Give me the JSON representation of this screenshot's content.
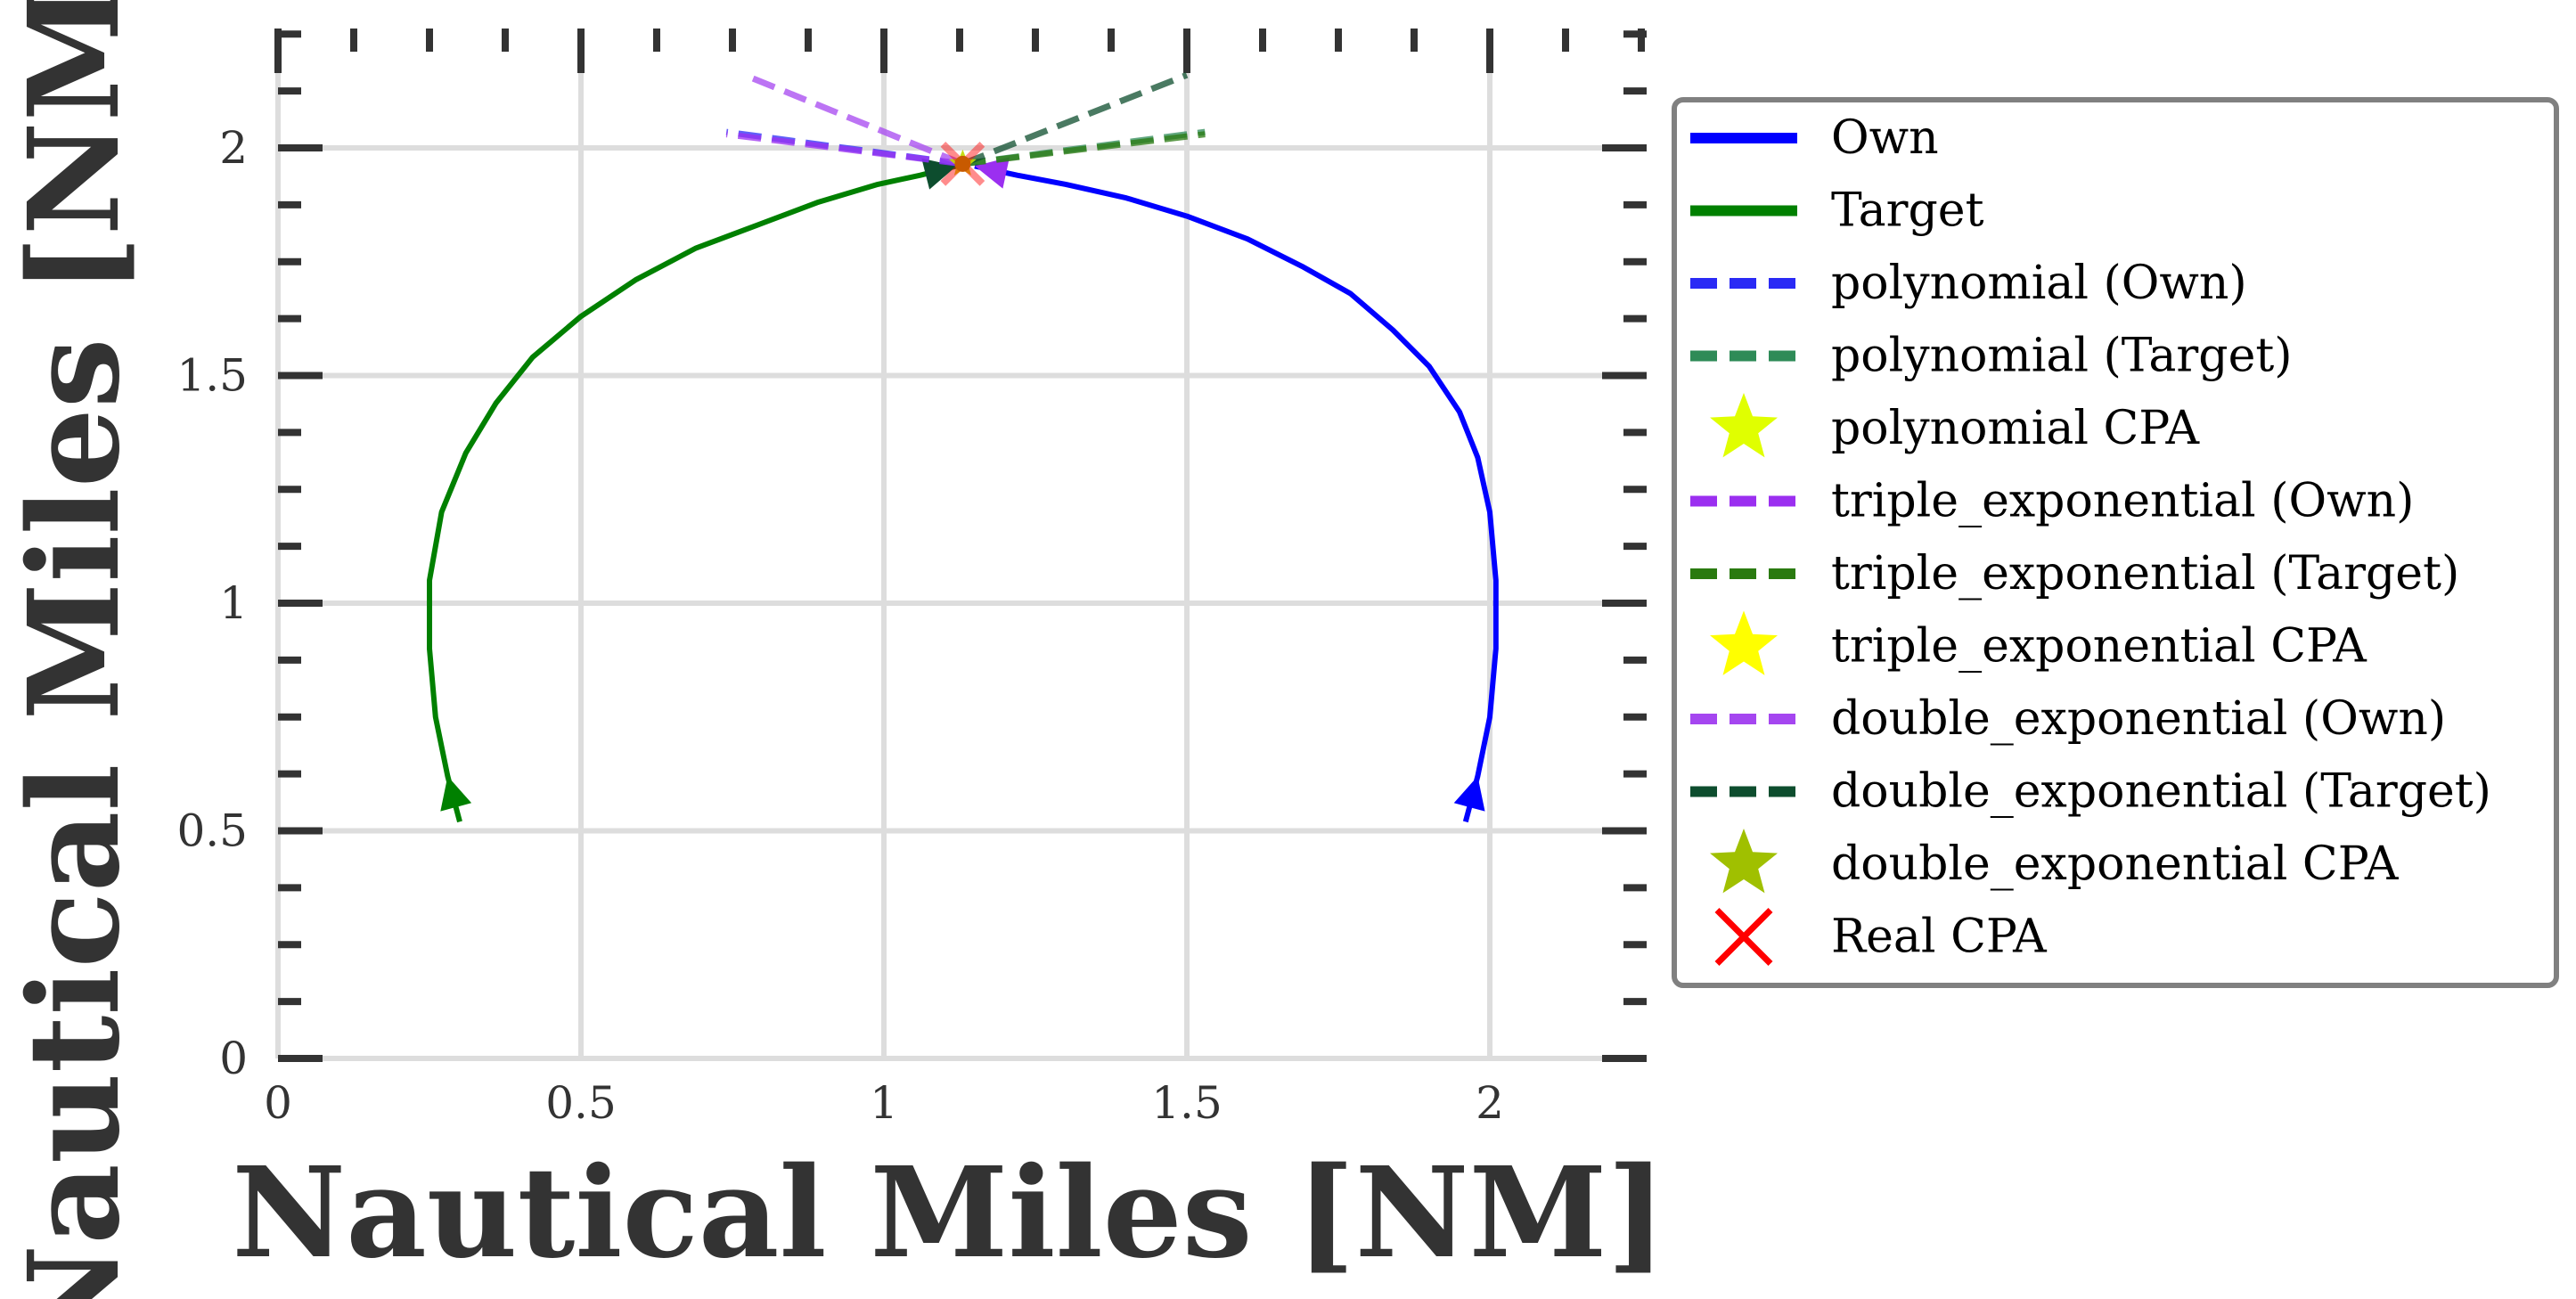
{
  "chart_data": {
    "type": "line",
    "xlabel": "Nautical Miles [NM]",
    "ylabel": "Nautical Miles [NM]",
    "xlim": [
      0,
      2.25
    ],
    "ylim": [
      0,
      2.25
    ],
    "xticks": [
      0,
      0.5,
      1,
      1.5,
      2
    ],
    "yticks": [
      0,
      0.5,
      1,
      1.5,
      2
    ],
    "xtick_labels": [
      "0",
      "0.5",
      "1",
      "1.5",
      "2"
    ],
    "ytick_labels": [
      "0",
      "0.5",
      "1",
      "1.5",
      "2"
    ],
    "grid": true,
    "legend_position": "outside-right",
    "series": [
      {
        "name": "Own",
        "style": "solid",
        "color": "#0000ff",
        "x": [
          1.96,
          1.98,
          2.0,
          2.01,
          2.01,
          2.0,
          1.98,
          1.95,
          1.9,
          1.84,
          1.77,
          1.69,
          1.6,
          1.5,
          1.4,
          1.3,
          1.22,
          1.15
        ],
        "y": [
          0.52,
          0.62,
          0.75,
          0.9,
          1.05,
          1.2,
          1.32,
          1.42,
          1.52,
          1.6,
          1.68,
          1.74,
          1.8,
          1.85,
          1.89,
          1.92,
          1.94,
          1.96
        ]
      },
      {
        "name": "Target",
        "style": "solid",
        "color": "#008000",
        "x": [
          0.3,
          0.28,
          0.26,
          0.25,
          0.25,
          0.27,
          0.31,
          0.36,
          0.42,
          0.5,
          0.59,
          0.69,
          0.79,
          0.89,
          0.99,
          1.06,
          1.12
        ],
        "y": [
          0.52,
          0.62,
          0.75,
          0.9,
          1.05,
          1.2,
          1.33,
          1.44,
          1.54,
          1.63,
          1.71,
          1.78,
          1.83,
          1.88,
          1.92,
          1.94,
          1.96
        ]
      },
      {
        "name": "polynomial (Own)",
        "style": "dashed",
        "color": "#2a2af5",
        "x": [
          1.13,
          0.74
        ],
        "y": [
          1.965,
          2.035
        ]
      },
      {
        "name": "polynomial (Target)",
        "style": "dashed",
        "color": "#2e8b57",
        "x": [
          1.13,
          1.53
        ],
        "y": [
          1.965,
          2.035
        ]
      },
      {
        "name": "triple_exponential (Own)",
        "style": "dashed",
        "color": "#9b2ff0",
        "x": [
          1.13,
          0.74
        ],
        "y": [
          1.965,
          2.03
        ]
      },
      {
        "name": "triple_exponential (Target)",
        "style": "dashed",
        "color": "#2a7a10",
        "x": [
          1.13,
          1.53
        ],
        "y": [
          1.965,
          2.03
        ]
      },
      {
        "name": "double_exponential (Own)",
        "style": "dashed",
        "color": "#a546f0",
        "x": [
          1.13,
          0.77
        ],
        "y": [
          1.965,
          2.16
        ]
      },
      {
        "name": "double_exponential (Target)",
        "style": "dashed",
        "color": "#0d4d2e",
        "x": [
          1.13,
          1.5
        ],
        "y": [
          1.965,
          2.16
        ]
      }
    ],
    "markers": [
      {
        "name": "polynomial CPA",
        "shape": "star",
        "color": "#e0ff00",
        "x": 1.13,
        "y": 1.965
      },
      {
        "name": "triple_exponential CPA",
        "shape": "star",
        "color": "#ffff00",
        "x": 1.13,
        "y": 1.965
      },
      {
        "name": "double_exponential CPA",
        "shape": "star",
        "color": "#a0c000",
        "x": 1.13,
        "y": 1.965
      },
      {
        "name": "Real CPA",
        "shape": "x",
        "color": "#ff0000",
        "x": 1.13,
        "y": 1.965
      }
    ],
    "legend": [
      {
        "label": "Own",
        "kind": "line",
        "color": "#0000ff"
      },
      {
        "label": "Target",
        "kind": "line",
        "color": "#008000"
      },
      {
        "label": "polynomial (Own)",
        "kind": "dash",
        "color": "#2a2af5"
      },
      {
        "label": "polynomial (Target)",
        "kind": "dash",
        "color": "#2e8b57"
      },
      {
        "label": "polynomial CPA",
        "kind": "star",
        "color": "#e0ff00"
      },
      {
        "label": "triple_exponential (Own)",
        "kind": "dash",
        "color": "#9b2ff0"
      },
      {
        "label": "triple_exponential (Target)",
        "kind": "dash",
        "color": "#2a7a10"
      },
      {
        "label": "triple_exponential CPA",
        "kind": "star",
        "color": "#ffff00"
      },
      {
        "label": "double_exponential (Own)",
        "kind": "dash",
        "color": "#a546f0"
      },
      {
        "label": "double_exponential (Target)",
        "kind": "dash",
        "color": "#0d4d2e"
      },
      {
        "label": "double_exponential CPA",
        "kind": "star",
        "color": "#a0c000"
      },
      {
        "label": "Real CPA",
        "kind": "x",
        "color": "#ff0000"
      }
    ]
  }
}
